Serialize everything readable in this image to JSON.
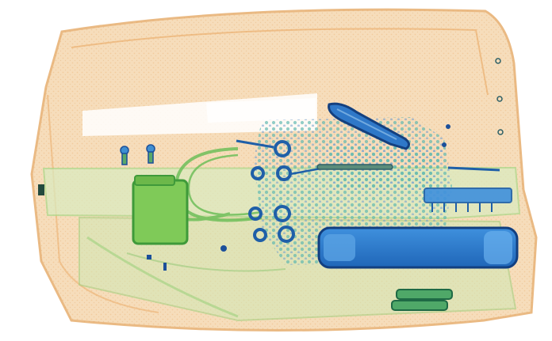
{
  "image": {
    "subject": "xray-baggage-scan",
    "colors": {
      "background": "#ffffff",
      "organic": "#f3cc9e",
      "organic_edge": "#e9a862",
      "mixed": "#a8d98a",
      "mixed_dark": "#6fbf5a",
      "dense": "#2f78c8",
      "dense_dark": "#1b4f9a",
      "dots": "#64b5c9"
    }
  }
}
